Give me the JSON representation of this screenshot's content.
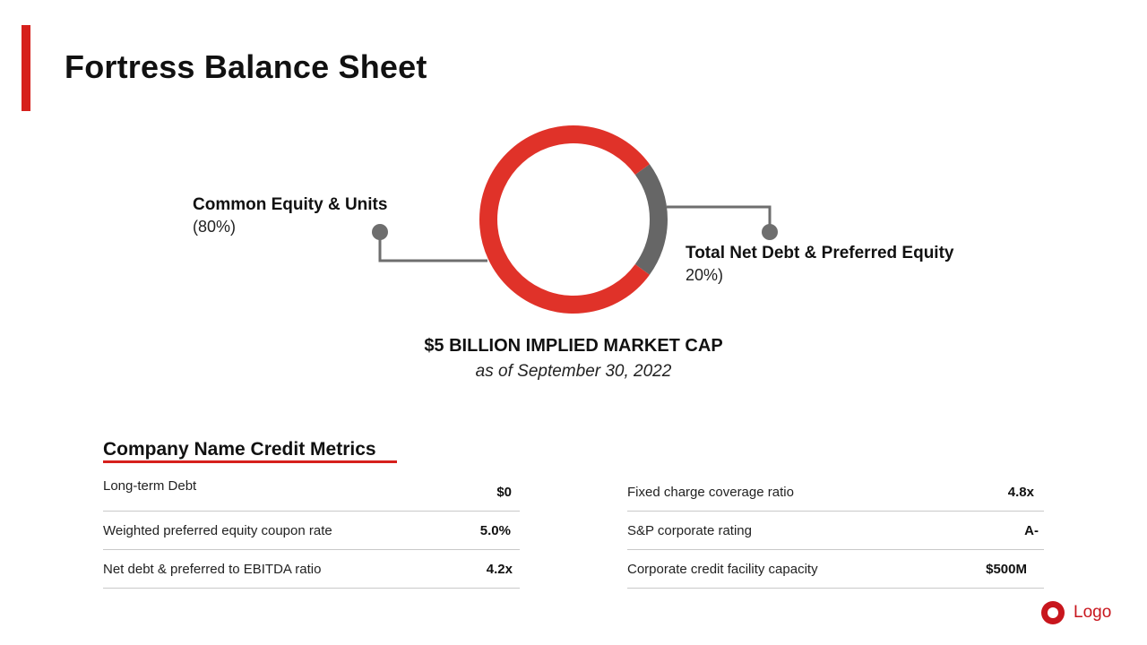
{
  "title": "Fortress Balance Sheet",
  "colors": {
    "accent": "#d6201c",
    "primary_segment": "#e03229",
    "secondary_segment": "#666666",
    "connector": "#6e6e6e"
  },
  "chart_data": {
    "type": "pie",
    "donut": true,
    "segments": [
      {
        "label": "Common Equity & Units",
        "value": 80,
        "value_text": "(80%)",
        "color": "#e03229"
      },
      {
        "label": "Total Net Debt & Preferred Equity",
        "value": 20,
        "value_text": "20%)",
        "color": "#666666"
      }
    ],
    "caption": "$5 BILLION IMPLIED MARKET CAP",
    "subcaption": "as of September 30, 2022"
  },
  "metrics": {
    "title": "Company Name Credit Metrics",
    "left": [
      {
        "label": "Long-term Debt",
        "value": "$0"
      },
      {
        "label": "Weighted preferred equity coupon rate",
        "value": "5.0%"
      },
      {
        "label": "Net debt & preferred to EBITDA ratio",
        "value": "4.2x"
      }
    ],
    "right": [
      {
        "label": "Fixed charge coverage ratio",
        "value": "4.8x"
      },
      {
        "label": "S&P corporate rating",
        "value": "A-"
      },
      {
        "label": "Corporate credit facility capacity",
        "value": "$500M"
      }
    ]
  },
  "logo": {
    "text": "Logo",
    "icon": "logo-ring-icon"
  }
}
